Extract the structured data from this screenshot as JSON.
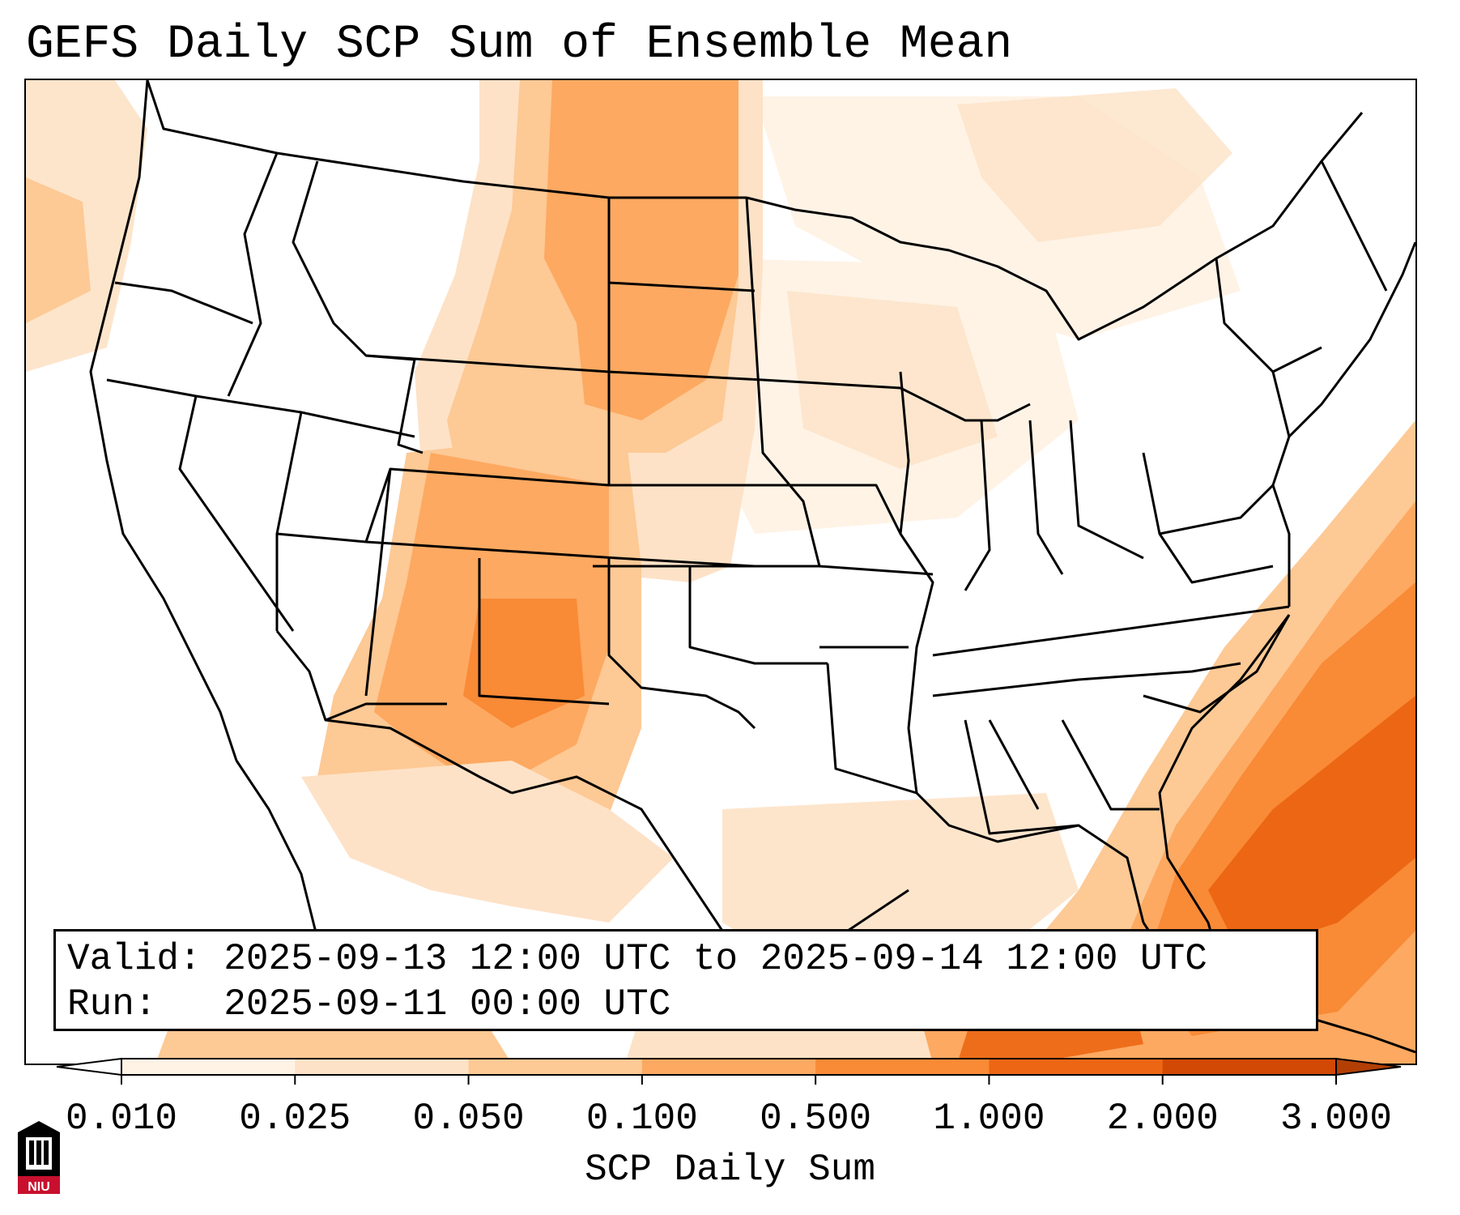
{
  "title": "GEFS Daily SCP Sum of Ensemble Mean",
  "info": {
    "valid_label": "Valid:",
    "valid_value": "2025-09-13 12:00 UTC to 2025-09-14 12:00 UTC",
    "run_label": "Run:",
    "run_value": "2025-09-11 00:00 UTC"
  },
  "colorbar": {
    "label": "SCP Daily Sum",
    "ticks": [
      "0.010",
      "0.025",
      "0.050",
      "0.100",
      "0.500",
      "1.000",
      "2.000",
      "3.000"
    ],
    "colors": [
      "#fff3e6",
      "#fde2c7",
      "#fdc995",
      "#fda961",
      "#f98a36",
      "#ec6614",
      "#d14904"
    ],
    "over_color": "#b33f04",
    "under_color": "#ffffff",
    "extend": "both"
  },
  "logo": {
    "text": "NIU",
    "color": "#c8102e"
  },
  "map": {
    "projection": "Lambert conformal (CONUS)",
    "region": "Contiguous United States",
    "borders": "state and national boundaries, coastlines"
  }
}
